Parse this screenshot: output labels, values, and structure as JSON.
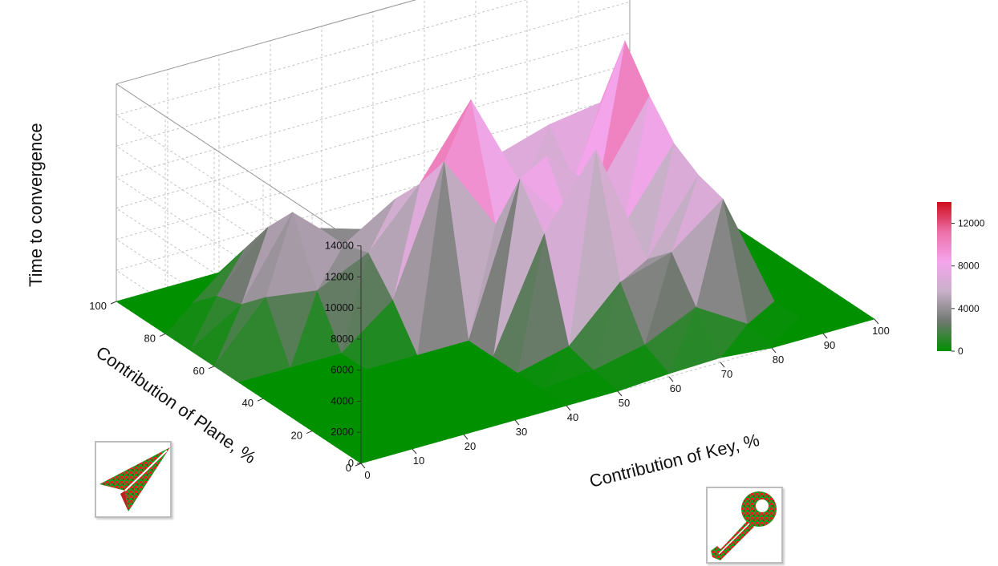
{
  "chart_data": {
    "type": "surface3d",
    "title": "",
    "xlabel": "Contribution of Key, %",
    "ylabel": "Contribution of Plane, %",
    "zlabel": "Time to convergence",
    "xlim": [
      0,
      100
    ],
    "ylim": [
      0,
      100
    ],
    "zlim": [
      0,
      14000
    ],
    "x_ticks": [
      "0",
      "10",
      "20",
      "30",
      "40",
      "50",
      "60",
      "70",
      "80",
      "90",
      "100"
    ],
    "y_ticks": [
      "0",
      "20",
      "40",
      "60",
      "80",
      "100"
    ],
    "z_ticks": [
      "0",
      "2000",
      "4000",
      "6000",
      "8000",
      "10000",
      "12000",
      "14000"
    ],
    "x": [
      0,
      10,
      20,
      30,
      40,
      50,
      60,
      70,
      80,
      90,
      100
    ],
    "y": [
      0,
      10,
      20,
      30,
      40,
      50,
      60,
      70,
      80,
      90,
      100
    ],
    "z": [
      [
        0,
        0,
        0,
        0,
        0,
        0,
        200,
        300,
        0,
        0,
        0
      ],
      [
        0,
        0,
        0,
        0,
        0,
        300,
        1000,
        2500,
        500,
        0,
        0
      ],
      [
        0,
        0,
        0,
        0,
        0,
        800,
        4000,
        5000,
        7500,
        0,
        0
      ],
      [
        0,
        0,
        0,
        0,
        0,
        7000,
        11500,
        3500,
        8000,
        0,
        0
      ],
      [
        0,
        0,
        0,
        0,
        0,
        9500,
        5500,
        4500,
        9000,
        0,
        0
      ],
      [
        0,
        0,
        0,
        2500,
        10500,
        5500,
        9000,
        6000,
        11000,
        300,
        0
      ],
      [
        0,
        3500,
        3000,
        4500,
        8000,
        12500,
        6000,
        5500,
        13500,
        500,
        0
      ],
      [
        0,
        2000,
        7000,
        4000,
        6000,
        4000,
        7000,
        8000,
        8500,
        200,
        0
      ],
      [
        0,
        1500,
        5000,
        4000,
        3000,
        3500,
        5000,
        5000,
        5500,
        0,
        0
      ],
      [
        0,
        0,
        2500,
        1500,
        1000,
        2000,
        3000,
        2500,
        2000,
        0,
        0
      ],
      [
        0,
        0,
        0,
        0,
        0,
        0,
        0,
        0,
        0,
        0,
        0
      ]
    ],
    "colorbar": {
      "ticks": [
        "0",
        "4000",
        "8000",
        "12000"
      ],
      "range": [
        0,
        14000
      ],
      "colors": [
        "#009000",
        "#707870",
        "#c8b0c8",
        "#f4a4ec",
        "#ec70a8",
        "#d00c1c"
      ]
    },
    "grid": true
  },
  "icons": {
    "plane": "paper-plane-icon",
    "key": "key-icon"
  }
}
